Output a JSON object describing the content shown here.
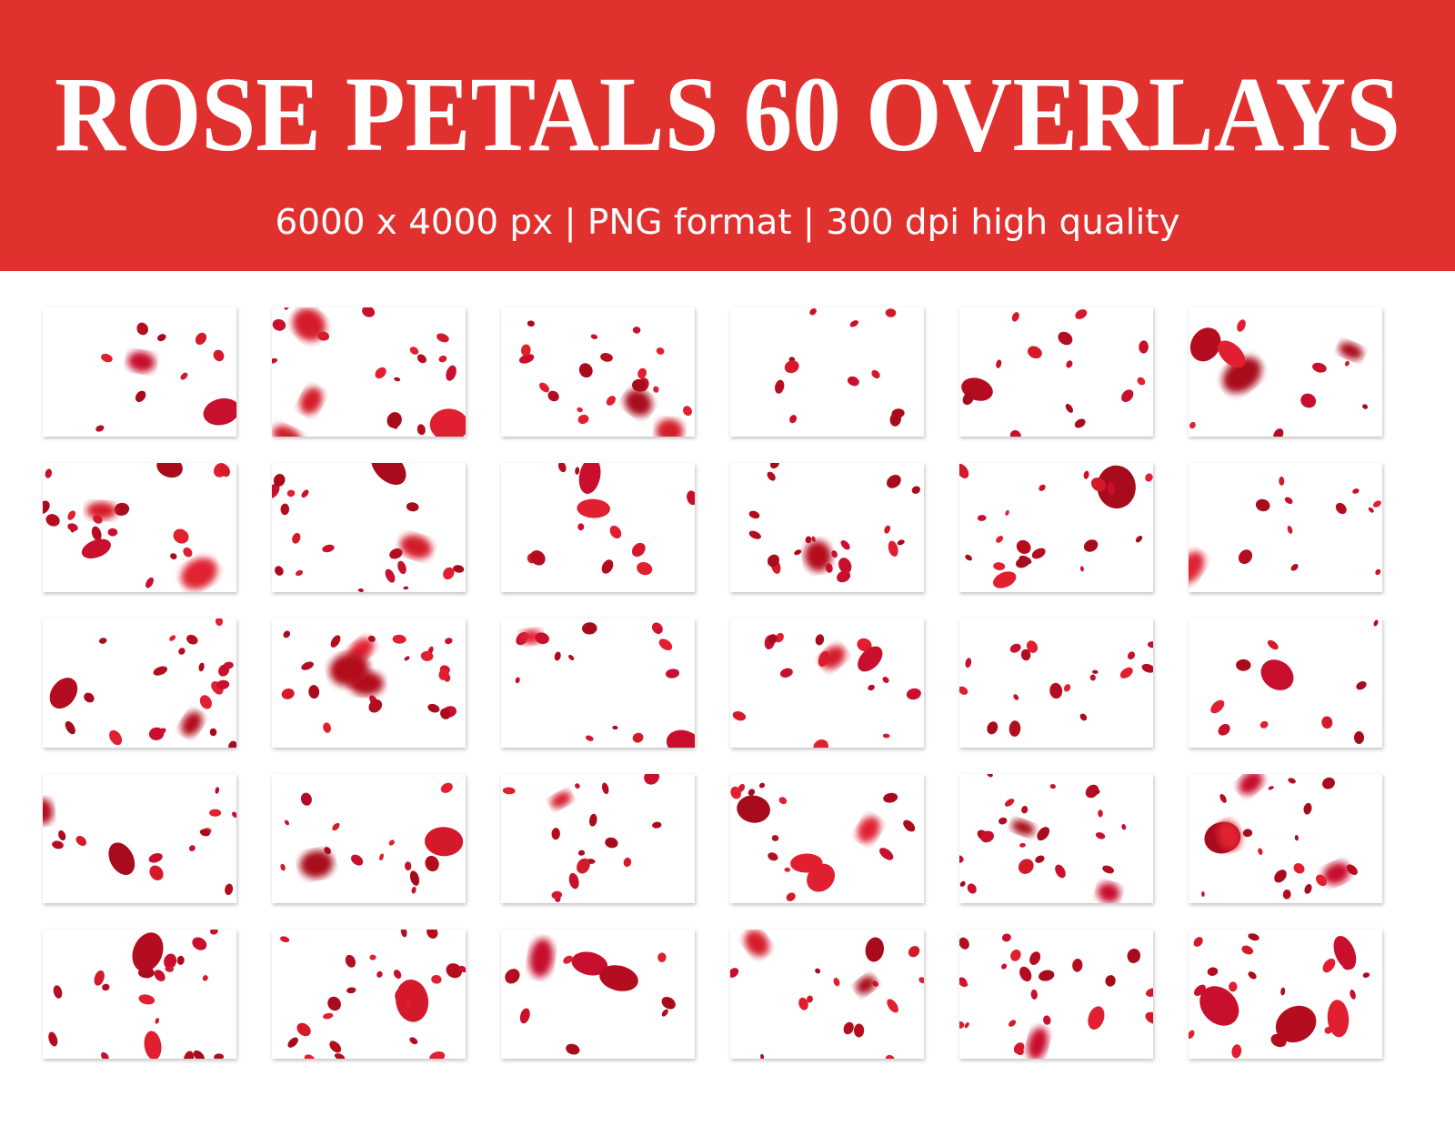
{
  "header": {
    "title": "ROSE PETALS 60 OVERLAYS",
    "subtitle": "6000 x 4000 px | PNG format | 300 dpi high quality"
  }
}
